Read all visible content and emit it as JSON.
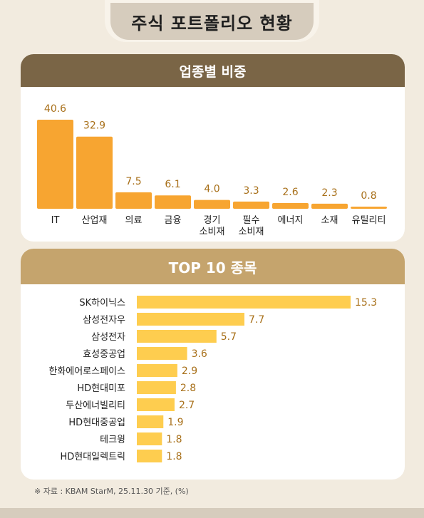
{
  "page_title": "주식 포트폴리오 현황",
  "footnote": "※ 자료 : KBAM StarM, 25.11.30 기준, (%)",
  "colors": {
    "bar_orange": "#f7a531",
    "bar_yellow": "#fecd4f",
    "value_label": "#a8701a",
    "header_dark": "#7a6546",
    "header_light": "#c5a46d"
  },
  "chart_data": [
    {
      "type": "bar",
      "title": "업종별 비중",
      "categories": [
        "IT",
        "산업재",
        "의료",
        "금융",
        "경기\n소비재",
        "필수\n소비재",
        "에너지",
        "소재",
        "유틸리티"
      ],
      "values": [
        40.6,
        32.9,
        7.5,
        6.1,
        4.0,
        3.3,
        2.6,
        2.3,
        0.8
      ],
      "value_labels": [
        "40.6",
        "32.9",
        "7.5",
        "6.1",
        "4.0",
        "3.3",
        "2.6",
        "2.3",
        "0.8"
      ],
      "ylim": [
        0,
        40.6
      ],
      "grid": false,
      "orientation": "vertical"
    },
    {
      "type": "bar",
      "title": "TOP 10 종목",
      "categories": [
        "SK하이닉스",
        "삼성전자우",
        "삼성전자",
        "효성중공업",
        "한화에어로스페이스",
        "HD현대미포",
        "두산에너빌리티",
        "HD현대중공업",
        "테크윙",
        "HD현대일렉트릭"
      ],
      "values": [
        15.3,
        7.7,
        5.7,
        3.6,
        2.9,
        2.8,
        2.7,
        1.9,
        1.8,
        1.8
      ],
      "value_labels": [
        "15.3",
        "7.7",
        "5.7",
        "3.6",
        "2.9",
        "2.8",
        "2.7",
        "1.9",
        "1.8",
        "1.8"
      ],
      "ylim": [
        0,
        15.3
      ],
      "grid": false,
      "orientation": "horizontal"
    }
  ]
}
